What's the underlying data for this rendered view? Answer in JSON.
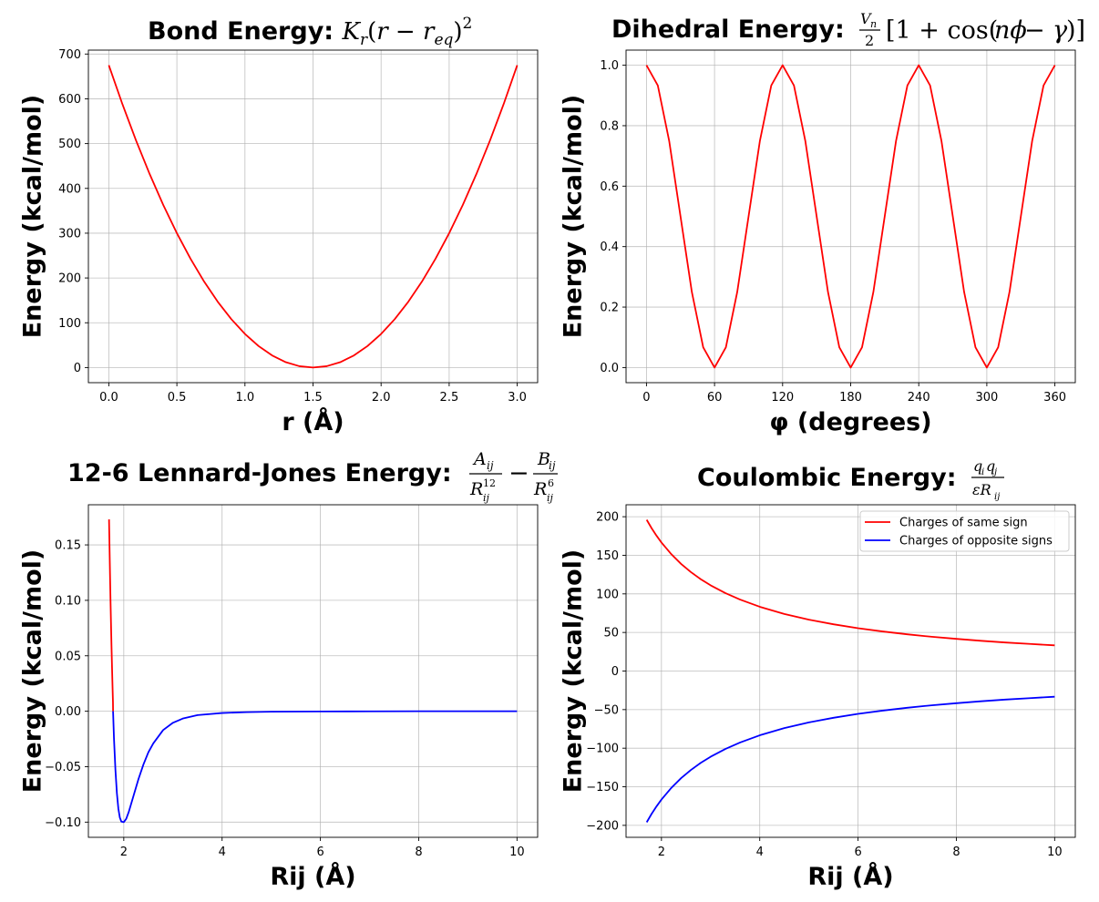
{
  "chart_data": [
    {
      "type": "line",
      "title": "Bond Energy: ",
      "xlabel": "r (Å)",
      "ylabel": "Energy (kcal/mol)",
      "xlim": [
        -0.15,
        3.15
      ],
      "ylim": [
        -33.75,
        708.75
      ],
      "xticks": [
        0.0,
        0.5,
        1.0,
        1.5,
        2.0,
        2.5,
        3.0
      ],
      "xtick_labels": [
        "0.0",
        "0.5",
        "1.0",
        "1.5",
        "2.0",
        "2.5",
        "3.0"
      ],
      "yticks": [
        0,
        100,
        200,
        300,
        400,
        500,
        600,
        700
      ],
      "ytick_labels": [
        "0",
        "100",
        "200",
        "300",
        "400",
        "500",
        "600",
        "700"
      ],
      "grid": true,
      "series": [
        {
          "color": "#ff0000",
          "x": [
            0.0,
            0.1,
            0.2,
            0.3,
            0.4,
            0.5,
            0.6,
            0.7,
            0.8,
            0.9,
            1.0,
            1.1,
            1.2,
            1.3,
            1.4,
            1.5,
            1.6,
            1.7,
            1.8,
            1.9,
            2.0,
            2.1,
            2.2,
            2.3,
            2.4,
            2.5,
            2.6,
            2.7,
            2.8,
            2.9,
            3.0
          ],
          "y": [
            675,
            588,
            507,
            432,
            363,
            300,
            243,
            192,
            147,
            108,
            75,
            48,
            27,
            12,
            3,
            0,
            3,
            12,
            27,
            48,
            75,
            108,
            147,
            192,
            243,
            300,
            363,
            432,
            507,
            588,
            675
          ]
        }
      ]
    },
    {
      "type": "line",
      "title": "Dihedral Energy: ",
      "xlabel": "φ (degrees)",
      "ylabel": "Energy (kcal/mol)",
      "xlim": [
        -18,
        378
      ],
      "ylim": [
        -0.05,
        1.05
      ],
      "xticks": [
        0,
        60,
        120,
        180,
        240,
        300,
        360
      ],
      "xtick_labels": [
        "0",
        "60",
        "120",
        "180",
        "240",
        "300",
        "360"
      ],
      "yticks": [
        0.0,
        0.2,
        0.4,
        0.6,
        0.8,
        1.0
      ],
      "ytick_labels": [
        "0.0",
        "0.2",
        "0.4",
        "0.6",
        "0.8",
        "1.0"
      ],
      "grid": true,
      "series": [
        {
          "color": "#ff0000",
          "x": [
            0,
            10,
            20,
            30,
            40,
            50,
            60,
            70,
            80,
            90,
            100,
            110,
            120,
            130,
            140,
            150,
            160,
            170,
            180,
            190,
            200,
            210,
            220,
            230,
            240,
            250,
            260,
            270,
            280,
            290,
            300,
            310,
            320,
            330,
            340,
            350,
            360
          ],
          "y": [
            1.0,
            0.933,
            0.75,
            0.5,
            0.25,
            0.067,
            0.0,
            0.067,
            0.25,
            0.5,
            0.75,
            0.933,
            1.0,
            0.933,
            0.75,
            0.5,
            0.25,
            0.067,
            0.0,
            0.067,
            0.25,
            0.5,
            0.75,
            0.933,
            1.0,
            0.933,
            0.75,
            0.5,
            0.25,
            0.067,
            0.0,
            0.067,
            0.25,
            0.5,
            0.75,
            0.933,
            1.0
          ]
        }
      ]
    },
    {
      "type": "line",
      "title": "12-6 Lennard-Jones Energy: ",
      "xlabel": "Rij (Å)",
      "ylabel": "Energy (kcal/mol)",
      "xlim": [
        1.28,
        10.42
      ],
      "ylim": [
        -0.1137,
        0.1862
      ],
      "xticks": [
        2,
        4,
        6,
        8,
        10
      ],
      "xtick_labels": [
        "2",
        "4",
        "6",
        "8",
        "10"
      ],
      "yticks": [
        -0.1,
        -0.05,
        0.0,
        0.05,
        0.1,
        0.15
      ],
      "ytick_labels": [
        "−0.10",
        "−0.05",
        "0.00",
        "0.05",
        "0.10",
        "0.15"
      ],
      "grid": true,
      "series": [
        {
          "color": "#ff0000",
          "x": [
            1.7,
            1.71,
            1.72,
            1.73,
            1.74,
            1.75,
            1.76,
            1.77,
            1.78,
            1.782
          ],
          "y": [
            0.173,
            0.148,
            0.123,
            0.1,
            0.079,
            0.059,
            0.041,
            0.024,
            0.008,
            0.0
          ]
        },
        {
          "color": "#0000ff",
          "x": [
            1.782,
            1.8,
            1.83,
            1.86,
            1.89,
            1.92,
            1.95,
            2.0,
            2.05,
            2.1,
            2.2,
            2.3,
            2.4,
            2.5,
            2.6,
            2.8,
            3.0,
            3.2,
            3.5,
            4.0,
            4.5,
            5.0,
            6.0,
            7.0,
            8.0,
            9.0,
            10.0
          ],
          "y": [
            0.0,
            -0.024,
            -0.053,
            -0.074,
            -0.088,
            -0.096,
            -0.0995,
            -0.1,
            -0.097,
            -0.091,
            -0.076,
            -0.061,
            -0.048,
            -0.037,
            -0.029,
            -0.017,
            -0.0104,
            -0.0066,
            -0.0035,
            -0.0016,
            -0.0008,
            -0.0004,
            -0.0002,
            -0.0001,
            0.0,
            0.0,
            0.0
          ]
        }
      ]
    },
    {
      "type": "line",
      "title": "Coulombic Energy: ",
      "xlabel": "Rij (Å)",
      "ylabel": "Energy (kcal/mol)",
      "xlim": [
        1.28,
        10.42
      ],
      "ylim": [
        -215.5,
        215.5
      ],
      "xticks": [
        2,
        4,
        6,
        8,
        10
      ],
      "xtick_labels": [
        "2",
        "4",
        "6",
        "8",
        "10"
      ],
      "yticks": [
        -200,
        -150,
        -100,
        -50,
        0,
        50,
        100,
        150,
        200
      ],
      "ytick_labels": [
        "−200",
        "−150",
        "−100",
        "−50",
        "0",
        "50",
        "100",
        "150",
        "200"
      ],
      "grid": true,
      "legend_position": "top-right",
      "series": [
        {
          "name": "Charges of same sign",
          "color": "#ff0000",
          "x": [
            1.7,
            1.8,
            1.9,
            2.0,
            2.2,
            2.4,
            2.6,
            2.8,
            3.0,
            3.3,
            3.6,
            4.0,
            4.5,
            5.0,
            5.5,
            6.0,
            6.5,
            7.0,
            7.5,
            8.0,
            8.5,
            9.0,
            9.5,
            10.0
          ],
          "y": [
            196,
            185.1,
            175.4,
            166.6,
            151.5,
            138.8,
            128.2,
            119.0,
            111.1,
            101.0,
            92.6,
            83.3,
            74.0,
            66.6,
            60.6,
            55.5,
            51.3,
            47.6,
            44.4,
            41.7,
            39.2,
            37.0,
            35.1,
            33.3
          ]
        },
        {
          "name": "Charges of opposite signs",
          "color": "#0000ff",
          "x": [
            1.7,
            1.8,
            1.9,
            2.0,
            2.2,
            2.4,
            2.6,
            2.8,
            3.0,
            3.3,
            3.6,
            4.0,
            4.5,
            5.0,
            5.5,
            6.0,
            6.5,
            7.0,
            7.5,
            8.0,
            8.5,
            9.0,
            9.5,
            10.0
          ],
          "y": [
            -196,
            -185.1,
            -175.4,
            -166.6,
            -151.5,
            -138.8,
            -128.2,
            -119.0,
            -111.1,
            -101.0,
            -92.6,
            -83.3,
            -74.0,
            -66.6,
            -60.6,
            -55.5,
            -51.3,
            -47.6,
            -44.4,
            -41.7,
            -39.2,
            -37.0,
            -35.1,
            -33.3
          ]
        }
      ]
    }
  ]
}
